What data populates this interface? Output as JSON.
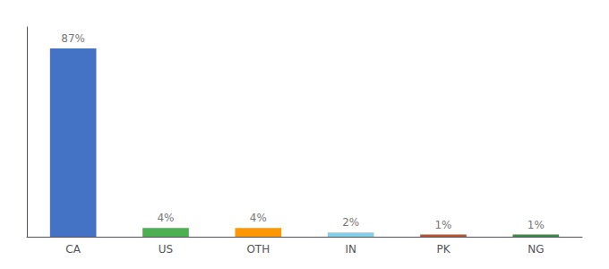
{
  "chart_data": {
    "type": "bar",
    "categories": [
      "CA",
      "US",
      "OTH",
      "IN",
      "PK",
      "NG"
    ],
    "values": [
      87,
      4,
      4,
      2,
      1,
      1
    ],
    "value_labels": [
      "87%",
      "4%",
      "4%",
      "2%",
      "1%",
      "1%"
    ],
    "data_labels": true,
    "colors": [
      "#4472c4",
      "#4caf50",
      "#ff9800",
      "#87ceeb",
      "#c0522a",
      "#3d8c40"
    ],
    "ylim": [
      0,
      97
    ],
    "tick_labels": "x",
    "grid": false
  }
}
